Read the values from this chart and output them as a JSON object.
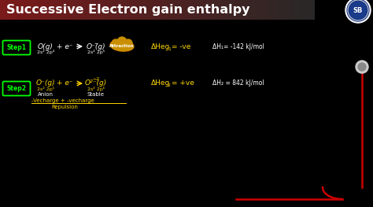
{
  "bg_color": "#000000",
  "title_grad_left": "#7a1a1a",
  "title_grad_right": "#1a1a1a",
  "title_text": "Successive Electron gain enthalpy",
  "title_color": "#ffffff",
  "title_fontsize": 11.5,
  "step1_box_color": "#00ff00",
  "step2_box_color": "#00ff00",
  "yellow_color": "#ffd700",
  "white_color": "#ffffff",
  "orange_color": "#d4a000",
  "red_color": "#cc0000",
  "step1_label": "Step1",
  "step2_label": "Step2",
  "config1_left": "2s² 2p⁴",
  "config1_right": "2s² 2p⁵",
  "config2_left": "2s² 2p⁵",
  "config2_right": "2s² 2p⁶",
  "anion_text": "Anion",
  "stable_text": "Stable",
  "attraction_text": "Attraction"
}
